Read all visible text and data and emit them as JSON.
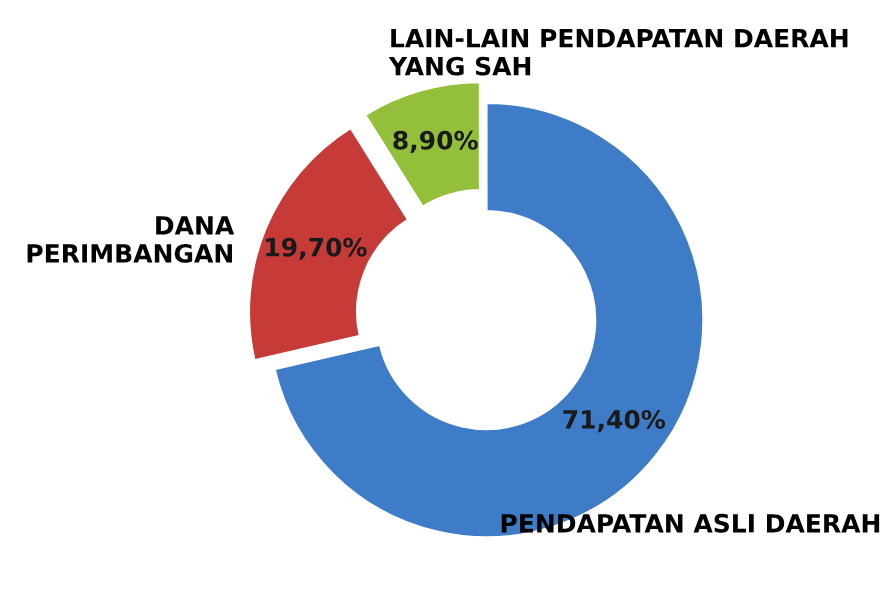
{
  "chart_data": {
    "type": "donut",
    "categories": [
      "PENDAPATAN ASLI DAERAH",
      "DANA PERIMBANGAN",
      "LAIN-LAIN PENDAPATAN DAERAH YANG SAH"
    ],
    "values": [
      71.4,
      19.7,
      8.9
    ],
    "colors": [
      "#3f7cc8",
      "#c63b38",
      "#93bf3a"
    ],
    "value_labels": [
      "71,40%",
      "19,70%",
      "8,90%"
    ],
    "legend": false
  }
}
